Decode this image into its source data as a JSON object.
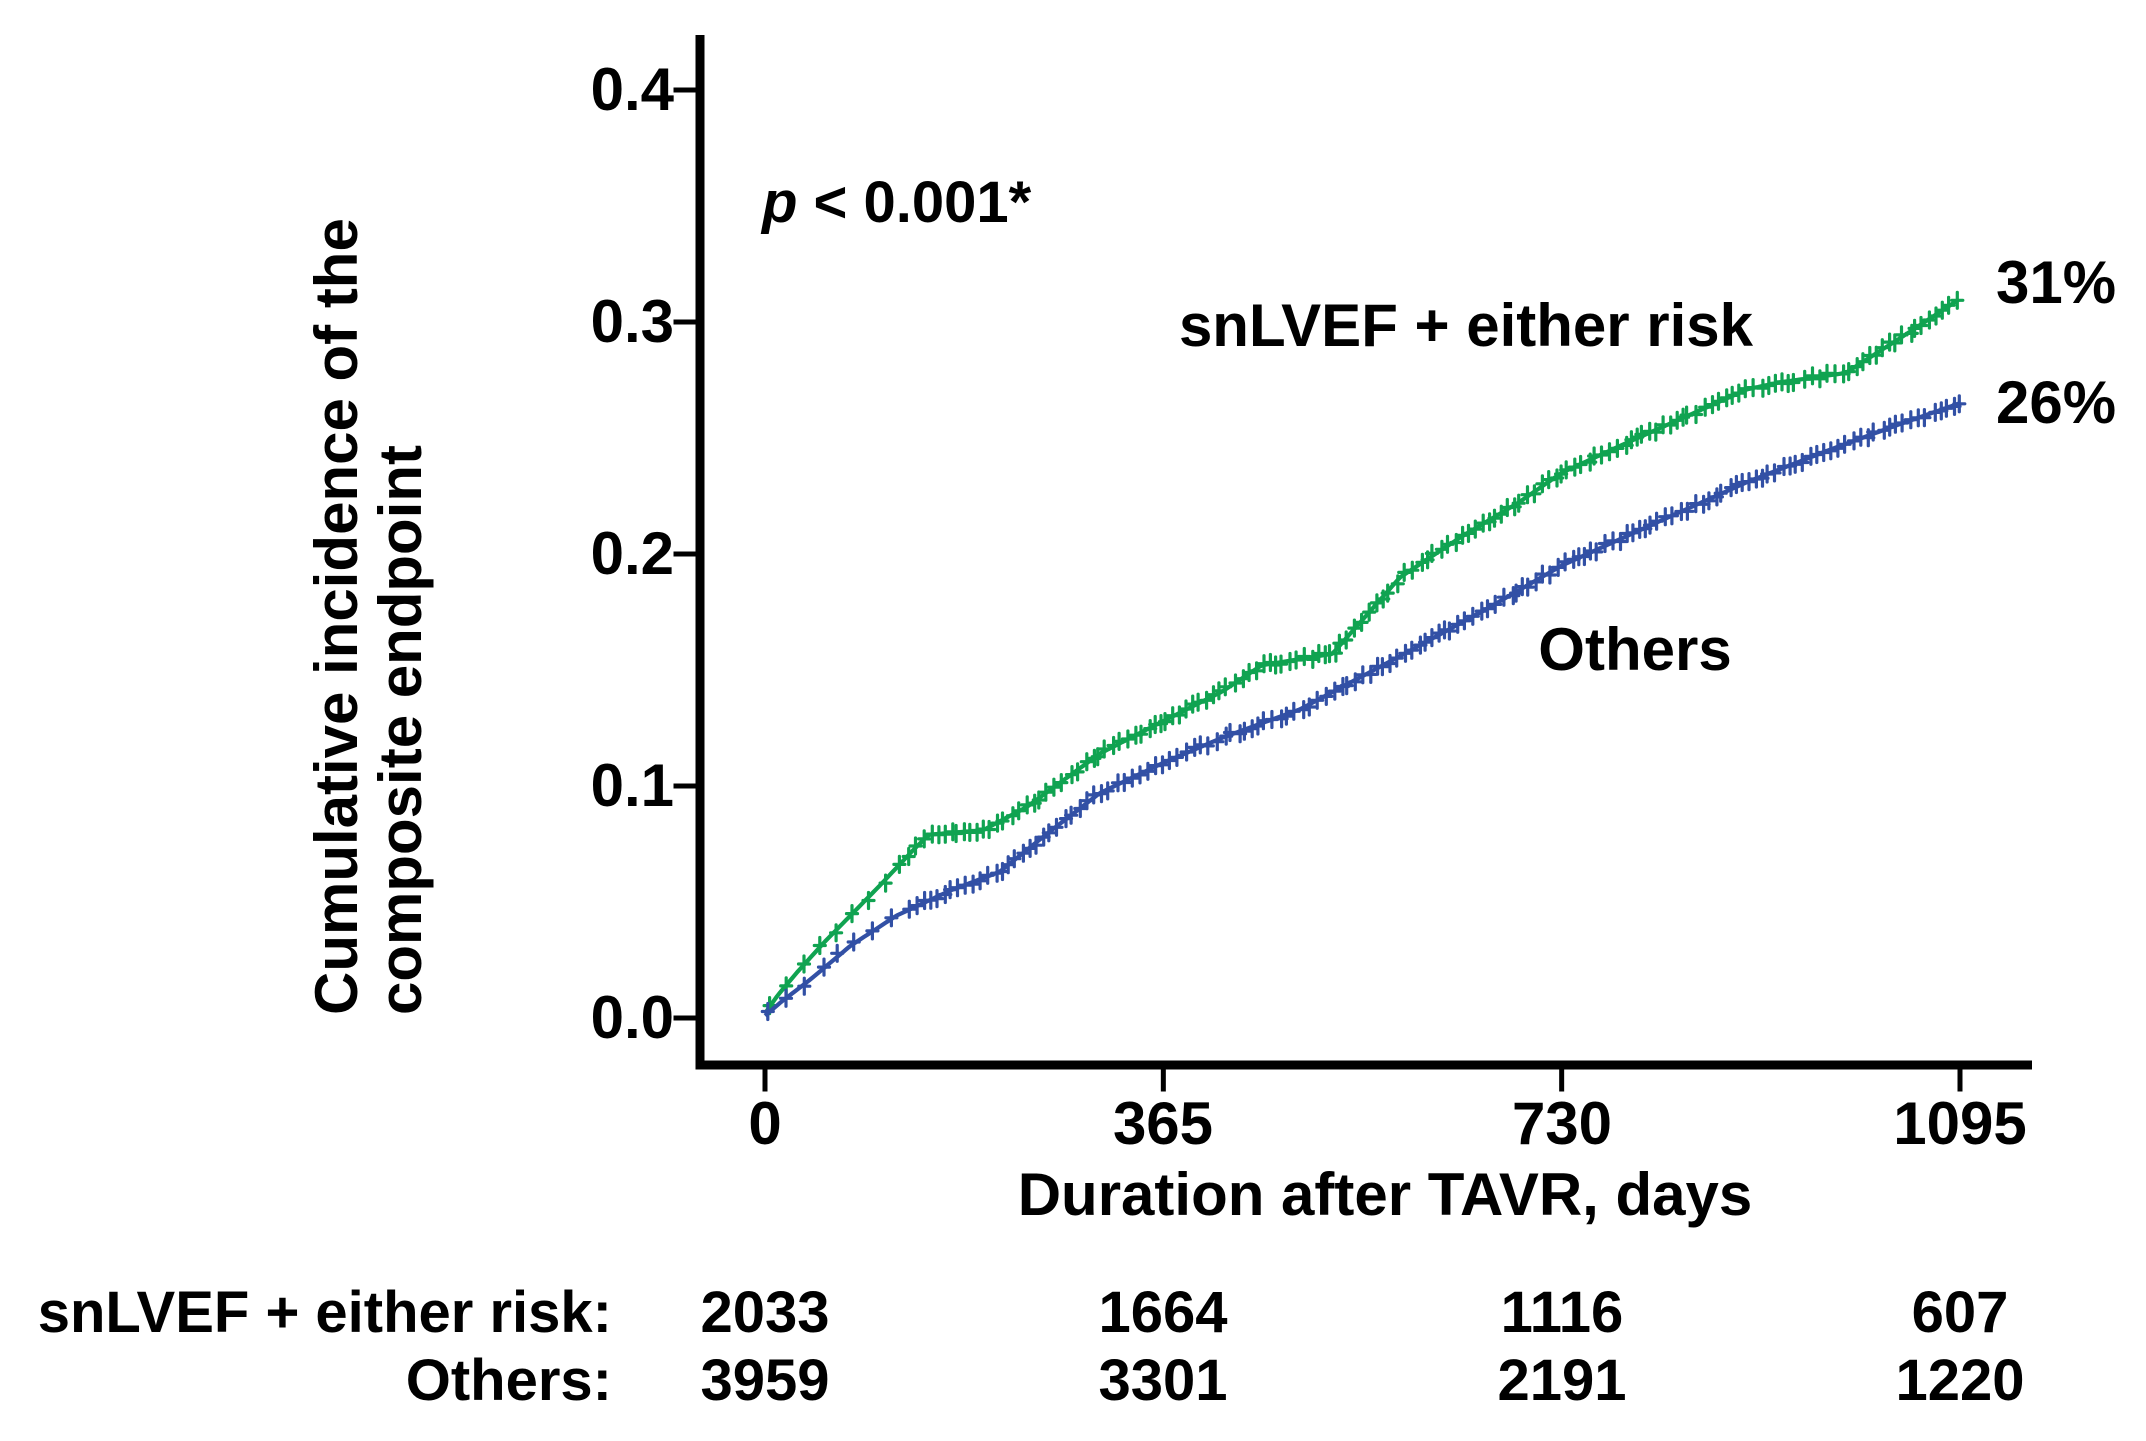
{
  "figure": {
    "p_value": {
      "italic": "p",
      "rest": " < 0.001*"
    },
    "x_axis": {
      "label": "Duration after TAVR, days",
      "ticks": [
        "0",
        "365",
        "730",
        "1095"
      ]
    },
    "y_axis": {
      "label_line1": "Cumulative incidence of the",
      "label_line2": "composite endpoint",
      "ticks": [
        "0.0",
        "0.1",
        "0.2",
        "0.3",
        "0.4"
      ]
    },
    "series_labels": {
      "green": "snLVEF + either risk",
      "blue": "Others"
    },
    "end_labels": {
      "green": "31%",
      "blue": "26%"
    },
    "risk_table": {
      "rows": [
        {
          "label": "snLVEF + either risk:",
          "values": [
            "2033",
            "1664",
            "1116",
            "607"
          ]
        },
        {
          "label": "Others:",
          "values": [
            "3959",
            "3301",
            "2191",
            "1220"
          ]
        }
      ]
    }
  },
  "chart_data": {
    "type": "line",
    "subtype": "kaplan-meier-cumulative-incidence",
    "title": "",
    "xlabel": "Duration after TAVR, days",
    "ylabel": "Cumulative incidence of the composite endpoint",
    "xlim": [
      0,
      1095
    ],
    "ylim": [
      0.0,
      0.4
    ],
    "x_ticks": [
      0,
      365,
      730,
      1095
    ],
    "y_ticks": [
      0.0,
      0.1,
      0.2,
      0.3,
      0.4
    ],
    "grid": false,
    "legend_position": "labels-on-curves",
    "annotation_p_value": "p < 0.001*",
    "series": [
      {
        "name": "snLVEF + either risk",
        "color": "#10A351",
        "end_label": "31%",
        "final_value": 0.31,
        "points": [
          [
            0,
            0.002
          ],
          [
            12,
            0.01
          ],
          [
            30,
            0.02
          ],
          [
            55,
            0.033
          ],
          [
            78,
            0.044
          ],
          [
            105,
            0.057
          ],
          [
            135,
            0.072
          ],
          [
            150,
            0.079
          ],
          [
            200,
            0.081
          ],
          [
            240,
            0.091
          ],
          [
            307,
            0.114
          ],
          [
            365,
            0.128
          ],
          [
            420,
            0.141
          ],
          [
            455,
            0.152
          ],
          [
            520,
            0.157
          ],
          [
            582,
            0.19
          ],
          [
            640,
            0.208
          ],
          [
            690,
            0.222
          ],
          [
            730,
            0.235
          ],
          [
            790,
            0.248
          ],
          [
            838,
            0.258
          ],
          [
            900,
            0.271
          ],
          [
            930,
            0.274
          ],
          [
            990,
            0.278
          ],
          [
            1040,
            0.293
          ],
          [
            1095,
            0.31
          ]
        ]
      },
      {
        "name": "Others",
        "color": "#3250A5",
        "end_label": "26%",
        "final_value": 0.26,
        "points": [
          [
            0,
            0.001
          ],
          [
            15,
            0.007
          ],
          [
            40,
            0.016
          ],
          [
            78,
            0.031
          ],
          [
            120,
            0.044
          ],
          [
            170,
            0.055
          ],
          [
            215,
            0.063
          ],
          [
            260,
            0.08
          ],
          [
            307,
            0.097
          ],
          [
            365,
            0.11
          ],
          [
            420,
            0.121
          ],
          [
            490,
            0.133
          ],
          [
            582,
            0.156
          ],
          [
            660,
            0.176
          ],
          [
            730,
            0.195
          ],
          [
            838,
            0.218
          ],
          [
            900,
            0.231
          ],
          [
            976,
            0.245
          ],
          [
            1040,
            0.256
          ],
          [
            1095,
            0.265
          ]
        ]
      }
    ],
    "at_risk": {
      "times": [
        0,
        365,
        730,
        1095
      ],
      "groups": [
        {
          "name": "snLVEF + either risk",
          "counts": [
            2033,
            1664,
            1116,
            607
          ]
        },
        {
          "name": "Others",
          "counts": [
            3959,
            3301,
            2191,
            1220
          ]
        }
      ]
    }
  }
}
